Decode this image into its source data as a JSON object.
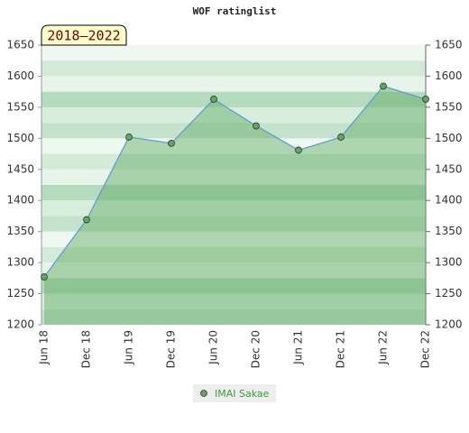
{
  "chart_data": {
    "type": "area",
    "title": "WOF ratinglist",
    "annotation": "2018–2022",
    "categories": [
      "Jun 18",
      "Dec 18",
      "Jun 19",
      "Dec 19",
      "Jun 20",
      "Dec 20",
      "Jun 21",
      "Dec 21",
      "Jun 22",
      "Dec 22"
    ],
    "series": [
      {
        "name": "IMAI Sakae",
        "color": "#5fa862",
        "line_color": "#5b9bd5",
        "values": [
          1277,
          1369,
          1502,
          1492,
          1563,
          1520,
          1481,
          1502,
          1584,
          1563
        ]
      }
    ],
    "ylim": [
      1200,
      1650
    ],
    "yticks": [
      1200,
      1250,
      1300,
      1350,
      1400,
      1450,
      1500,
      1550,
      1600,
      1650
    ],
    "y2lim": [
      1200,
      1650
    ],
    "y2ticks": [
      1200,
      1250,
      1300,
      1350,
      1400,
      1450,
      1500,
      1550,
      1600,
      1650
    ]
  }
}
